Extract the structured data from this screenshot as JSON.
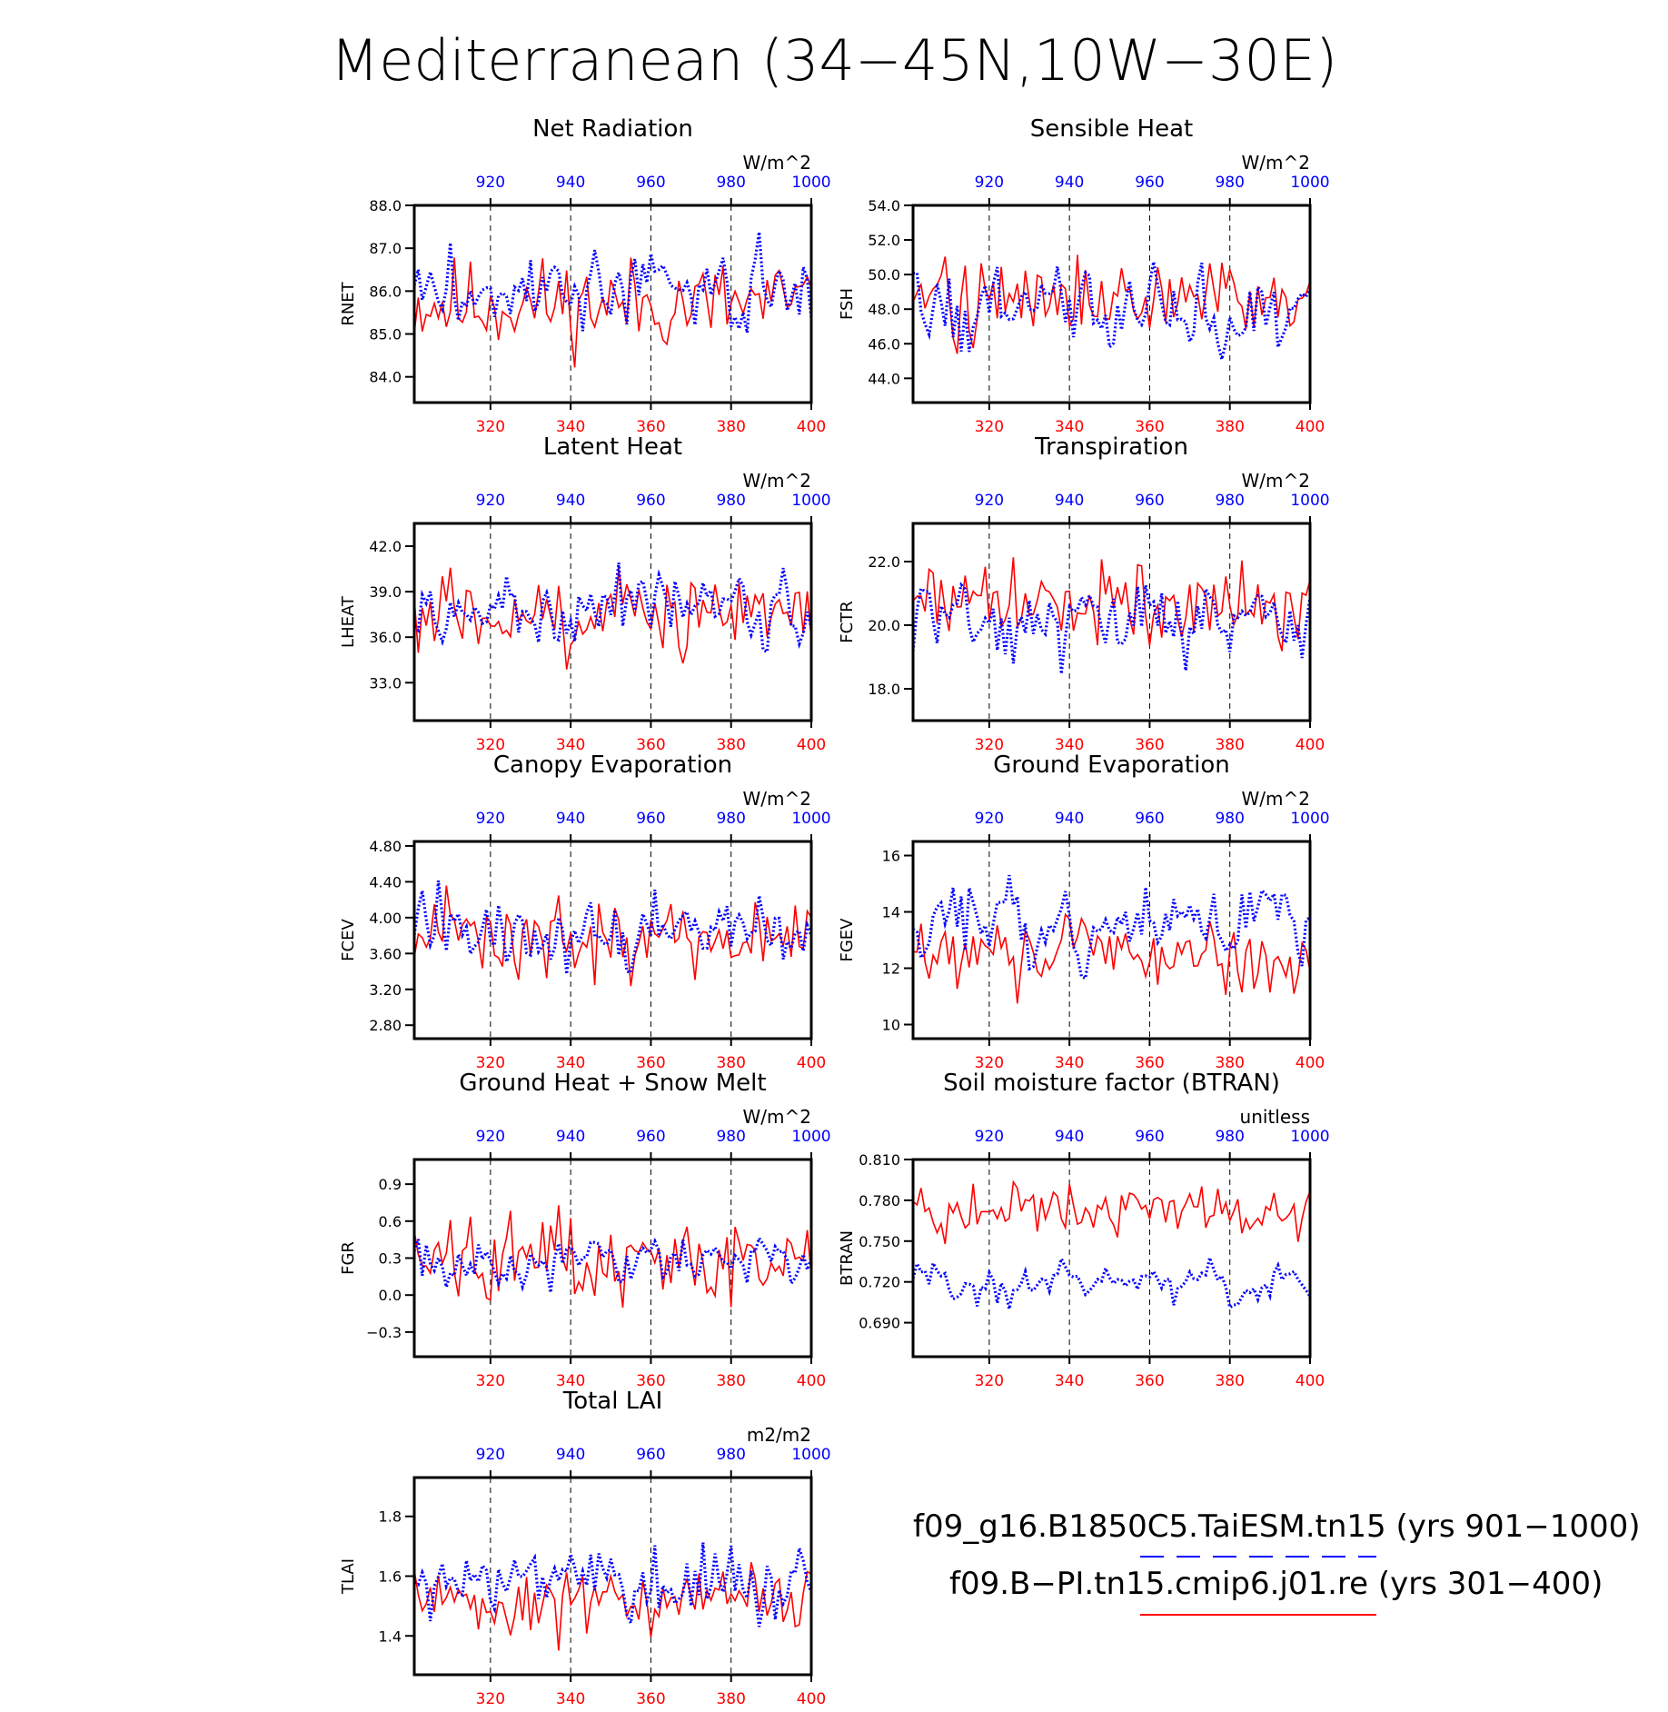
{
  "figure": {
    "title": "Mediterranean (34−45N,10W−30E)",
    "colors": {
      "red": "#ff0000",
      "blue": "#0000ff",
      "axis": "#000000"
    },
    "top_axis_ticks": [
      "920",
      "940",
      "960",
      "980",
      "1000"
    ],
    "bottom_axis_ticks": [
      "320",
      "340",
      "360",
      "380",
      "400"
    ],
    "legend": {
      "run1": "f09_g16.B1850C5.TaiESM.tn15 (yrs 901−1000)",
      "run1_style": "dashed blue",
      "run2": "f09.B−PI.tn15.cmip6.j01.re (yrs 301−400)",
      "run2_style": "solid red"
    }
  },
  "chart_data": [
    {
      "type": "line",
      "title": "Net Radiation",
      "ylabel": "RNET",
      "units": "W/m^2",
      "yticks": [
        "84.0",
        "85.0",
        "86.0",
        "87.0",
        "88.0"
      ],
      "ylim": [
        83.4,
        88.0
      ],
      "xlim": [
        301,
        400
      ],
      "x2lim": [
        901,
        1000
      ],
      "grid": "dashed vertical lines at 320, 340, 360, 380",
      "series": [
        {
          "color": "red",
          "mean": 85.7,
          "amp": 0.8,
          "years": "301-400"
        },
        {
          "color": "blue",
          "mean": 86.0,
          "amp": 0.8,
          "years": "901-1000"
        }
      ]
    },
    {
      "type": "line",
      "title": "Sensible Heat",
      "ylabel": "FSH",
      "units": "W/m^2",
      "yticks": [
        "44.0",
        "46.0",
        "48.0",
        "50.0",
        "52.0",
        "54.0"
      ],
      "ylim": [
        42.6,
        54.0
      ],
      "xlim": [
        301,
        400
      ],
      "x2lim": [
        901,
        1000
      ],
      "grid": "dashed vertical lines at 320, 340, 360, 380",
      "series": [
        {
          "color": "red",
          "mean": 48.6,
          "amp": 1.9,
          "years": "301-400"
        },
        {
          "color": "blue",
          "mean": 48.0,
          "amp": 2.2,
          "years": "901-1000"
        }
      ]
    },
    {
      "type": "line",
      "title": "Latent Heat",
      "ylabel": "LHEAT",
      "units": "W/m^2",
      "yticks": [
        "33.0",
        "36.0",
        "39.0",
        "42.0"
      ],
      "ylim": [
        30.5,
        43.5
      ],
      "xlim": [
        301,
        400
      ],
      "x2lim": [
        901,
        1000
      ],
      "grid": "dashed vertical lines at 320, 340, 360, 380",
      "series": [
        {
          "color": "red",
          "mean": 37.3,
          "amp": 2.0,
          "years": "301-400"
        },
        {
          "color": "blue",
          "mean": 37.6,
          "amp": 2.0,
          "years": "901-1000"
        }
      ]
    },
    {
      "type": "line",
      "title": "Transpiration",
      "ylabel": "FCTR",
      "units": "W/m^2",
      "yticks": [
        "18.0",
        "20.0",
        "22.0"
      ],
      "ylim": [
        17.0,
        23.2
      ],
      "xlim": [
        301,
        400
      ],
      "x2lim": [
        901,
        1000
      ],
      "grid": "dashed vertical lines at 320, 340, 360, 380",
      "series": [
        {
          "color": "red",
          "mean": 20.7,
          "amp": 1.1,
          "years": "301-400"
        },
        {
          "color": "blue",
          "mean": 20.0,
          "amp": 1.1,
          "years": "901-1000"
        }
      ]
    },
    {
      "type": "line",
      "title": "Canopy Evaporation",
      "ylabel": "FCEV",
      "units": "W/m^2",
      "yticks": [
        "2.80",
        "3.20",
        "3.60",
        "4.00",
        "4.40",
        "4.80"
      ],
      "ylim": [
        2.65,
        4.85
      ],
      "xlim": [
        301,
        400
      ],
      "x2lim": [
        901,
        1000
      ],
      "grid": "dashed vertical lines at 320, 340, 360, 380",
      "series": [
        {
          "color": "red",
          "mean": 3.75,
          "amp": 0.35,
          "years": "301-400"
        },
        {
          "color": "blue",
          "mean": 3.8,
          "amp": 0.4,
          "years": "901-1000"
        }
      ]
    },
    {
      "type": "line",
      "title": "Ground Evaporation",
      "ylabel": "FGEV",
      "units": "W/m^2",
      "yticks": [
        "10",
        "12",
        "14",
        "16"
      ],
      "ylim": [
        9.5,
        16.5
      ],
      "xlim": [
        301,
        400
      ],
      "x2lim": [
        901,
        1000
      ],
      "grid": "dashed vertical lines at 320, 340, 360, 380",
      "series": [
        {
          "color": "red",
          "mean": 12.4,
          "amp": 0.9,
          "years": "301-400"
        },
        {
          "color": "blue",
          "mean": 13.7,
          "amp": 1.1,
          "years": "901-1000"
        }
      ]
    },
    {
      "type": "line",
      "title": "Ground Heat + Snow Melt",
      "ylabel": "FGR",
      "units": "W/m^2",
      "yticks": [
        "−0.3",
        "0.0",
        "0.3",
        "0.6",
        "0.9"
      ],
      "ylim": [
        -0.5,
        1.1
      ],
      "xlim": [
        301,
        400
      ],
      "x2lim": [
        901,
        1000
      ],
      "grid": "dashed vertical lines at 320, 340, 360, 380",
      "series": [
        {
          "color": "red",
          "mean": 0.28,
          "amp": 0.25,
          "years": "301-400"
        },
        {
          "color": "blue",
          "mean": 0.27,
          "amp": 0.18,
          "years": "901-1000"
        }
      ]
    },
    {
      "type": "line",
      "title": "Soil moisture factor (BTRAN)",
      "ylabel": "BTRAN",
      "units": "unitless",
      "yticks": [
        "0.690",
        "0.720",
        "0.750",
        "0.780",
        "0.810"
      ],
      "ylim": [
        0.665,
        0.81
      ],
      "xlim": [
        301,
        400
      ],
      "x2lim": [
        901,
        1000
      ],
      "grid": "dashed vertical lines at 320, 340, 360, 380",
      "series": [
        {
          "color": "red",
          "mean": 0.774,
          "amp": 0.014,
          "years": "301-400"
        },
        {
          "color": "blue",
          "mean": 0.72,
          "amp": 0.014,
          "years": "901-1000"
        }
      ]
    },
    {
      "type": "line",
      "title": "Total LAI",
      "ylabel": "TLAI",
      "units": "m2/m2",
      "yticks": [
        "1.4",
        "1.6",
        "1.8"
      ],
      "ylim": [
        1.27,
        1.93
      ],
      "xlim": [
        301,
        400
      ],
      "x2lim": [
        901,
        1000
      ],
      "grid": "dashed vertical lines at 320, 340, 360, 380",
      "series": [
        {
          "color": "red",
          "mean": 1.52,
          "amp": 0.09,
          "years": "301-400"
        },
        {
          "color": "blue",
          "mean": 1.59,
          "amp": 0.1,
          "years": "901-1000"
        }
      ]
    }
  ]
}
